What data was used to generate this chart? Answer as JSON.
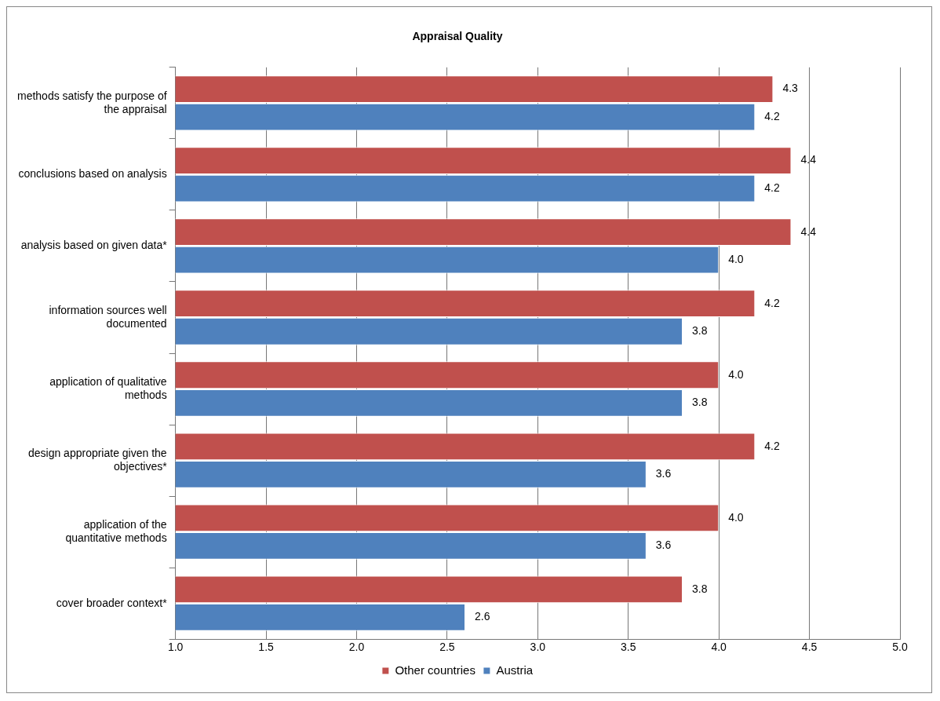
{
  "chart_data": {
    "type": "bar",
    "orientation": "horizontal",
    "title": "Appraisal Quality",
    "categories": [
      "methods satisfy the purpose of the appraisal",
      "conclusions based on analysis",
      "analysis based on given data*",
      "information sources well documented",
      "application of qualitative methods",
      "design appropriate given the objectives*",
      "application of the quantitative methods",
      "cover broader context*"
    ],
    "series": [
      {
        "name": "Other countries",
        "color": "#c0504d",
        "values": [
          4.3,
          4.4,
          4.4,
          4.2,
          4.0,
          4.2,
          4.0,
          3.8
        ],
        "value_labels": [
          "4.3",
          "4.4",
          "4.4",
          "4.2",
          "4.0",
          "4.2",
          "4.0",
          "3.8"
        ]
      },
      {
        "name": "Austria",
        "color": "#4f81bd",
        "values": [
          4.2,
          4.2,
          4.0,
          3.8,
          3.8,
          3.6,
          3.6,
          2.6
        ],
        "value_labels": [
          "4.2",
          "4.2",
          "4.0",
          "3.8",
          "3.8",
          "3.6",
          "3.6",
          "2.6"
        ]
      }
    ],
    "xlim": [
      1.0,
      5.0
    ],
    "xticks": [
      {
        "value": 1,
        "label": "1.0"
      },
      {
        "value": 1.5,
        "label": "1.5"
      },
      {
        "value": 2,
        "label": "2.0"
      },
      {
        "value": 2.5,
        "label": "2.5"
      },
      {
        "value": 3,
        "label": "3.0"
      },
      {
        "value": 3.5,
        "label": "3.5"
      },
      {
        "value": 4,
        "label": "4.0"
      },
      {
        "value": 4.5,
        "label": "4.5"
      },
      {
        "value": 5,
        "label": "5.0"
      }
    ],
    "grid": "x",
    "legend": "bottom"
  }
}
